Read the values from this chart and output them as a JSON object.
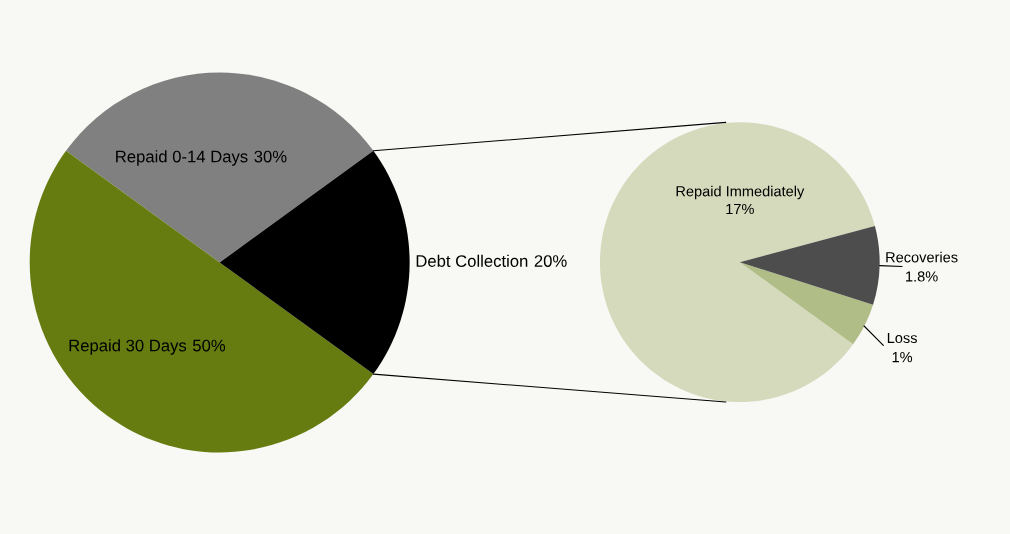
{
  "chart_data": [
    {
      "type": "pie",
      "categories": [
        "Repaid 0-14 Days",
        "Repaid 30 Days",
        "Debt Collection"
      ],
      "values": [
        30,
        50,
        20
      ],
      "value_labels": [
        "30%",
        "50%",
        "20%"
      ],
      "colors": [
        "#808080",
        "#667c10",
        "#000000"
      ]
    },
    {
      "type": "pie",
      "categories": [
        "Repaid Immediately",
        "Loss",
        "Recoveries"
      ],
      "values": [
        17,
        1,
        1.8
      ],
      "value_labels": [
        "17%",
        "1%",
        "1.8%"
      ],
      "colors": [
        "#d4dabb",
        "#b1bd87",
        "#4d4d4d"
      ]
    }
  ]
}
